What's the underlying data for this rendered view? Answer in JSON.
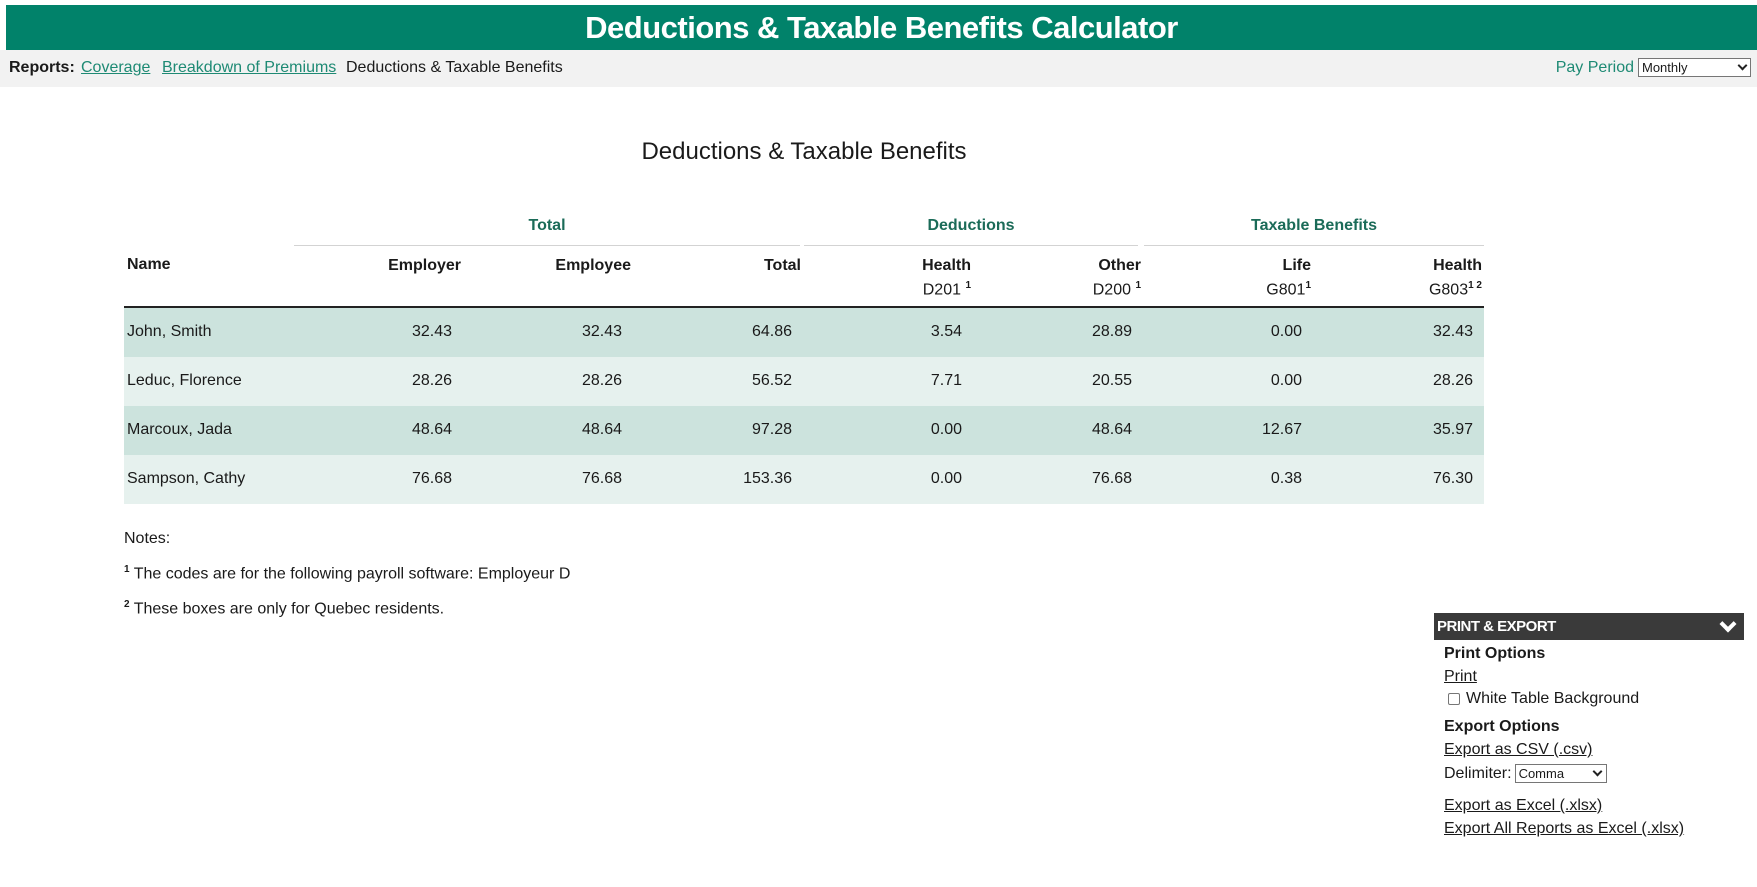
{
  "app": {
    "title": "Deductions & Taxable Benefits Calculator"
  },
  "nav": {
    "reports_label": "Reports:",
    "links": [
      "Coverage",
      "Breakdown of Premiums"
    ],
    "current": "Deductions & Taxable Benefits",
    "pay_period_label": "Pay Period",
    "pay_period_value": "Monthly"
  },
  "report": {
    "title": "Deductions & Taxable Benefits",
    "groups": {
      "total": "Total",
      "deductions": "Deductions",
      "taxable": "Taxable Benefits"
    },
    "columns": {
      "name": "Name",
      "employer": "Employer",
      "employee": "Employee",
      "total": "Total",
      "health": {
        "label": "Health",
        "code": "D201",
        "sup": "1"
      },
      "other": {
        "label": "Other",
        "code": "D200",
        "sup": "1"
      },
      "life": {
        "label": "Life",
        "code": "G801",
        "sup": "1"
      },
      "health_tb": {
        "label": "Health",
        "code": "G803",
        "sup": "1 2"
      }
    },
    "rows": [
      {
        "name": "John, Smith",
        "employer": "32.43",
        "employee": "32.43",
        "total": "64.86",
        "health": "3.54",
        "other": "28.89",
        "life": "0.00",
        "health_tb": "32.43"
      },
      {
        "name": "Leduc, Florence",
        "employer": "28.26",
        "employee": "28.26",
        "total": "56.52",
        "health": "7.71",
        "other": "20.55",
        "life": "0.00",
        "health_tb": "28.26"
      },
      {
        "name": "Marcoux, Jada",
        "employer": "48.64",
        "employee": "48.64",
        "total": "97.28",
        "health": "0.00",
        "other": "48.64",
        "life": "12.67",
        "health_tb": "35.97"
      },
      {
        "name": "Sampson, Cathy",
        "employer": "76.68",
        "employee": "76.68",
        "total": "153.36",
        "health": "0.00",
        "other": "76.68",
        "life": "0.38",
        "health_tb": "76.30"
      }
    ],
    "notes": {
      "label": "Notes:",
      "items": [
        {
          "sup": "1",
          "text": "The codes are for the following payroll software: Employeur D"
        },
        {
          "sup": "2",
          "text": "These boxes are only for Quebec residents."
        }
      ]
    }
  },
  "export_panel": {
    "title": "PRINT & EXPORT",
    "print_options": "Print Options",
    "print": "Print",
    "white_bg": "White Table Background",
    "export_options": "Export Options",
    "export_csv": "Export as CSV (.csv)",
    "delimiter_label": "Delimiter:",
    "delimiter_value": "Comma",
    "export_excel": "Export as Excel (.xlsx)",
    "export_all": "Export All Reports as Excel (.xlsx)"
  }
}
